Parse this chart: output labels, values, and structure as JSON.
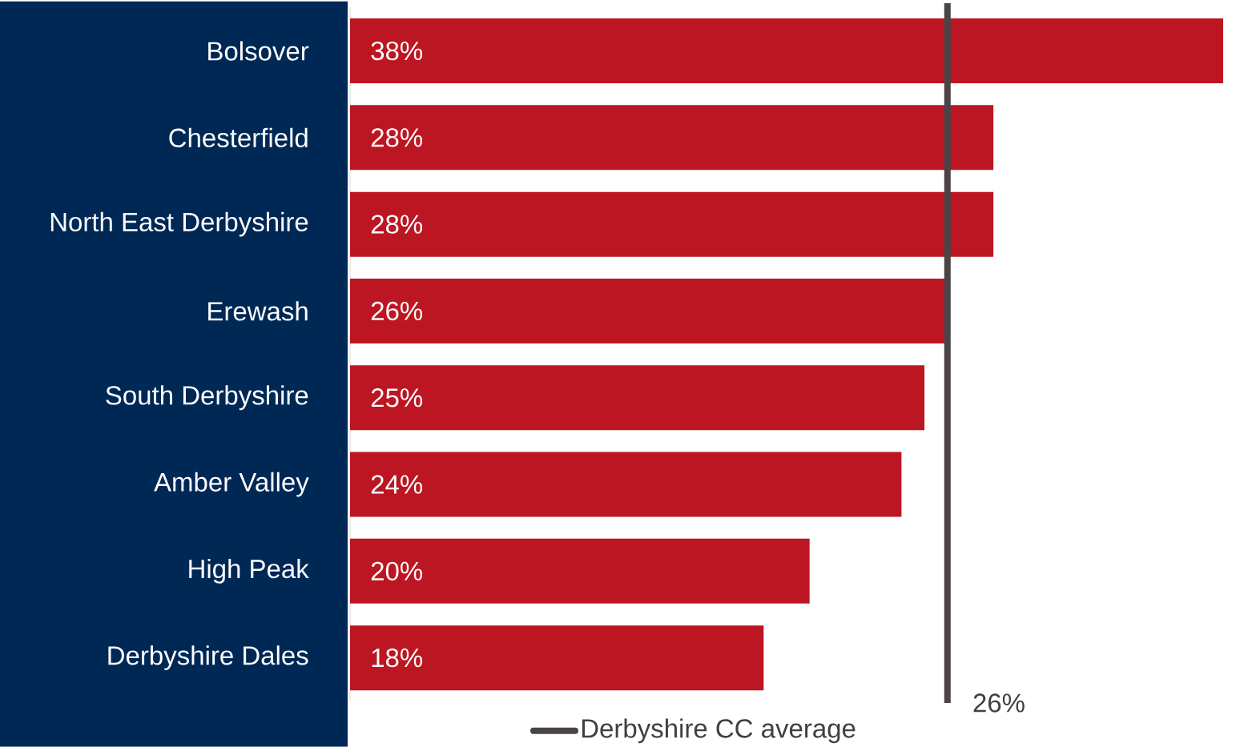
{
  "chart_data": {
    "type": "bar",
    "orientation": "horizontal",
    "categories": [
      "Bolsover",
      "Chesterfield",
      "North East Derbyshire",
      "Erewash",
      "South Derbyshire",
      "Amber Valley",
      "High Peak",
      "Derbyshire Dales"
    ],
    "values": [
      38,
      28,
      28,
      26,
      25,
      24,
      20,
      18
    ],
    "value_labels": [
      "38%",
      "28%",
      "28%",
      "26%",
      "25%",
      "24%",
      "20%",
      "18%"
    ],
    "color": "#bc1622",
    "ref_lines": [
      {
        "axis": "x",
        "value": 26,
        "label": "Derbyshire CC average",
        "color": "#4a4446"
      }
    ],
    "annotations": [
      {
        "text": "26%",
        "x": 26
      }
    ],
    "legend": "bottom"
  }
}
